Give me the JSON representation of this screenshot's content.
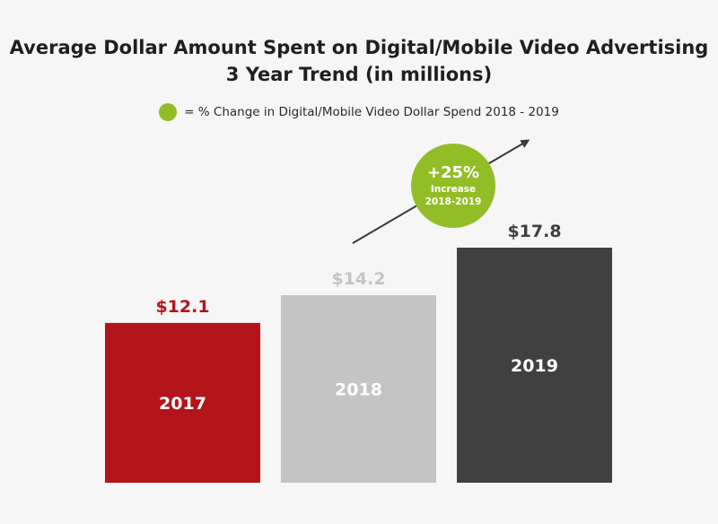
{
  "chart_data": {
    "type": "bar",
    "title_line1": "Average Dollar Amount Spent on Digital/Mobile Video Advertising",
    "title_line2": "3 Year Trend (in millions)",
    "legend_text": "= % Change in Digital/Mobile Video Dollar Spend 2018 - 2019",
    "categories": [
      "2017",
      "2018",
      "2019"
    ],
    "values": [
      12.1,
      14.2,
      17.8
    ],
    "value_labels": [
      "$12.1",
      "$14.2",
      "$17.8"
    ],
    "bar_colors": [
      "#b3151b",
      "#c4c4c4",
      "#404040"
    ],
    "value_label_colors": [
      "#b3151b",
      "#c4c4c4",
      "#404040"
    ],
    "annotation": {
      "headline": "+25%",
      "line2": "Increase",
      "line3": "2018-2019",
      "color": "#93bd27"
    },
    "arrow_color": "#3a3a3a",
    "legend_color": "#93bd27",
    "ylim": [
      0,
      17.8
    ],
    "xlabel": "",
    "ylabel": "",
    "grid": false
  }
}
